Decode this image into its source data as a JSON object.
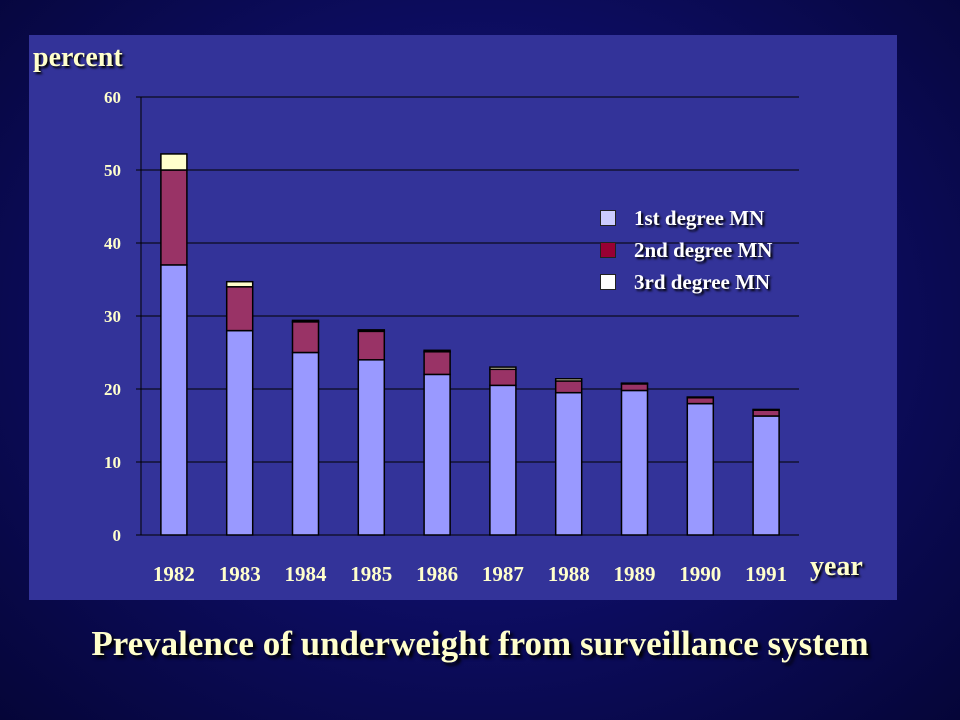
{
  "caption": "Prevalence of underweight from surveillance system",
  "chart_data": {
    "type": "bar",
    "stacked": true,
    "ylabel": "percent",
    "xlabel": "year",
    "ylim": [
      0,
      60
    ],
    "yticks": [
      0,
      10,
      20,
      30,
      40,
      50,
      60
    ],
    "grid": true,
    "legend_position": "top-right",
    "categories": [
      "1982",
      "1983",
      "1984",
      "1985",
      "1986",
      "1987",
      "1988",
      "1989",
      "1990",
      "1991"
    ],
    "series": [
      {
        "name": "1st degree MN",
        "color": "#9999ff",
        "values": [
          37,
          28,
          25,
          24,
          22,
          20.5,
          19.5,
          19.8,
          18,
          16.3
        ]
      },
      {
        "name": "2nd degree MN",
        "color": "#993366",
        "values": [
          13,
          6,
          4.2,
          3.9,
          3.1,
          2.2,
          1.6,
          0.9,
          0.8,
          0.8
        ]
      },
      {
        "name": "3rd degree MN",
        "color": "#ffffcc",
        "values": [
          2.2,
          0.7,
          0.2,
          0.2,
          0.2,
          0.3,
          0.3,
          0.1,
          0.1,
          0.1
        ]
      }
    ],
    "legend_swatch_colors": [
      "#ccccff",
      "#990033",
      "#ffffff"
    ]
  }
}
